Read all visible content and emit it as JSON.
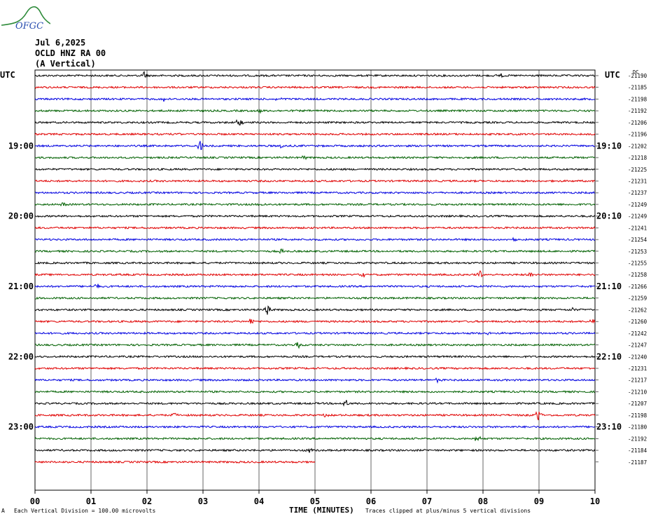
{
  "header": {
    "logo_text": "OFGC",
    "date": "Jul 6,2025",
    "station": "OCLD HNZ RA 00",
    "component": "(A Vertical)",
    "left_utc_label": "UTC",
    "right_utc_label": "UTC",
    "dc_label": "DC"
  },
  "footer": {
    "scale_note": "Each Vertical Division =  100.00 microvolts",
    "clip_note": "Traces clipped at plus/minus 5 vertical divisions",
    "corner_mark": "A"
  },
  "chart_data": {
    "type": "line",
    "title": "OCLD HNZ RA 00",
    "xlabel": "TIME (MINUTES)",
    "ylabel": "",
    "x_ticks": [
      "00",
      "01",
      "02",
      "03",
      "04",
      "05",
      "06",
      "07",
      "08",
      "09",
      "10"
    ],
    "xlim": [
      0,
      10
    ],
    "left_hour_labels": [
      {
        "row": 6,
        "label": "19:00"
      },
      {
        "row": 12,
        "label": "20:00"
      },
      {
        "row": 18,
        "label": "21:00"
      },
      {
        "row": 24,
        "label": "22:00"
      },
      {
        "row": 30,
        "label": "23:00"
      }
    ],
    "right_hour_labels": [
      {
        "row": 6,
        "label": "19:10"
      },
      {
        "row": 12,
        "label": "20:10"
      },
      {
        "row": 18,
        "label": "21:10"
      },
      {
        "row": 24,
        "label": "22:10"
      },
      {
        "row": 30,
        "label": "23:10"
      }
    ],
    "trace_colors": [
      "#000000",
      "#e00000",
      "#0000e0",
      "#006000"
    ],
    "dc_offsets": [
      -21190,
      -21185,
      -21198,
      -21192,
      -21206,
      -21196,
      -21202,
      -21218,
      -21225,
      -21231,
      -21237,
      -21249,
      -21249,
      -21241,
      -21254,
      -21253,
      -21255,
      -21258,
      -21266,
      -21259,
      -21262,
      -21260,
      -21242,
      -21247,
      -21240,
      -21231,
      -21217,
      -21210,
      -21207,
      -21198,
      -21180,
      -21192,
      -21184,
      -21187
    ],
    "trace_end_minutes": [
      10,
      10,
      10,
      10,
      10,
      10,
      10,
      10,
      10,
      10,
      10,
      10,
      10,
      10,
      10,
      10,
      10,
      10,
      10,
      10,
      10,
      10,
      10,
      10,
      10,
      10,
      10,
      10,
      10,
      10,
      10,
      10,
      10,
      5
    ],
    "events": [
      {
        "row": 0,
        "minute": 1.95,
        "amp": 6
      },
      {
        "row": 0,
        "minute": 8.3,
        "amp": 4
      },
      {
        "row": 2,
        "minute": 2.3,
        "amp": 3
      },
      {
        "row": 2,
        "minute": 4.35,
        "amp": 4
      },
      {
        "row": 3,
        "minute": 4.0,
        "amp": 4
      },
      {
        "row": 4,
        "minute": 3.65,
        "amp": 7
      },
      {
        "row": 5,
        "minute": 2.6,
        "amp": 5
      },
      {
        "row": 6,
        "minute": 2.95,
        "amp": 8
      },
      {
        "row": 6,
        "minute": 4.4,
        "amp": 3
      },
      {
        "row": 7,
        "minute": 4.8,
        "amp": 3
      },
      {
        "row": 11,
        "minute": 0.5,
        "amp": 3
      },
      {
        "row": 11,
        "minute": 4.05,
        "amp": 3
      },
      {
        "row": 14,
        "minute": 8.55,
        "amp": 5
      },
      {
        "row": 15,
        "minute": 4.4,
        "amp": 4
      },
      {
        "row": 17,
        "minute": 5.85,
        "amp": 4
      },
      {
        "row": 17,
        "minute": 7.95,
        "amp": 6
      },
      {
        "row": 17,
        "minute": 8.85,
        "amp": 3
      },
      {
        "row": 18,
        "minute": 1.1,
        "amp": 4
      },
      {
        "row": 20,
        "minute": 4.15,
        "amp": 9
      },
      {
        "row": 20,
        "minute": 9.6,
        "amp": 3
      },
      {
        "row": 21,
        "minute": 3.85,
        "amp": 5
      },
      {
        "row": 21,
        "minute": 9.95,
        "amp": 4
      },
      {
        "row": 22,
        "minute": 8.1,
        "amp": 3
      },
      {
        "row": 23,
        "minute": 4.7,
        "amp": 4
      },
      {
        "row": 26,
        "minute": 7.2,
        "amp": 3
      },
      {
        "row": 28,
        "minute": 5.55,
        "amp": 6
      },
      {
        "row": 29,
        "minute": 2.5,
        "amp": 3
      },
      {
        "row": 29,
        "minute": 5.2,
        "amp": 3
      },
      {
        "row": 29,
        "minute": 9.0,
        "amp": 10
      },
      {
        "row": 31,
        "minute": 7.9,
        "amp": 5
      },
      {
        "row": 32,
        "minute": 4.9,
        "amp": 3
      }
    ]
  }
}
